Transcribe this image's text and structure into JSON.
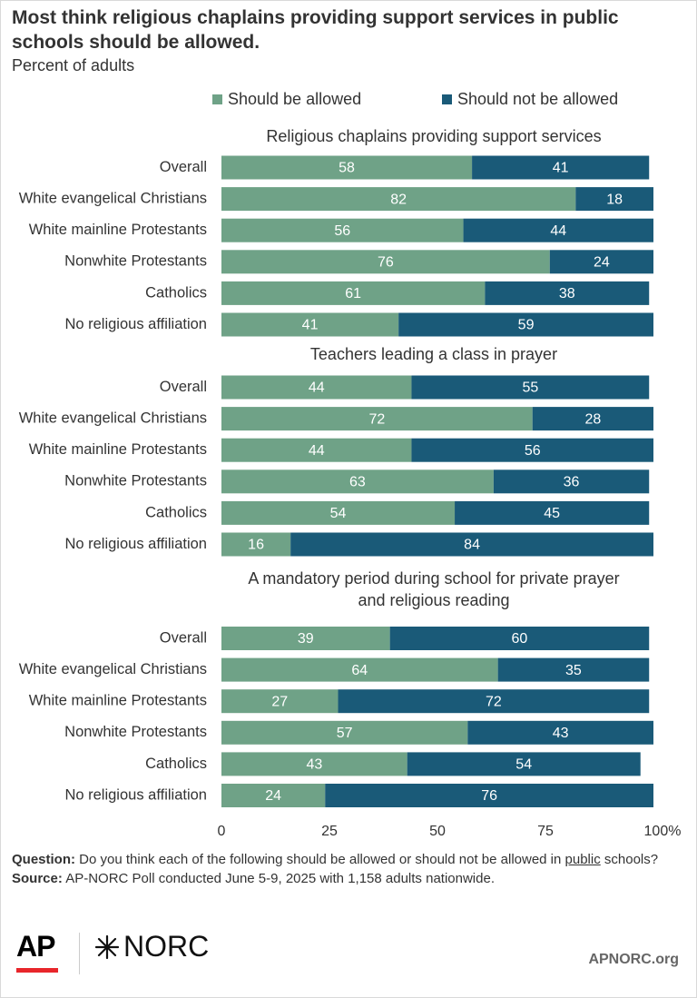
{
  "header": {
    "title": "Most think religious chaplains providing support services in public schools should be allowed.",
    "subtitle": "Percent of adults"
  },
  "colors": {
    "allowed": "#6fa287",
    "not_allowed": "#1a5a78",
    "label_light": "#ffffff"
  },
  "chart_data": {
    "type": "bar",
    "orientation": "horizontal-stacked",
    "xlim": [
      0,
      100
    ],
    "xticks": [
      "0",
      "25",
      "50",
      "75",
      "100%"
    ],
    "legend": {
      "placement": "top",
      "entries": [
        "Should be allowed",
        "Should not be allowed"
      ]
    },
    "series": [
      {
        "name": "Should be allowed"
      },
      {
        "name": "Should not be allowed"
      }
    ],
    "panels": [
      {
        "title": "Religious chaplains providing support services",
        "categories": [
          "Overall",
          "White evangelical Christians",
          "White mainline Protestants",
          "Nonwhite Protestants",
          "Catholics",
          "No religious affiliation"
        ],
        "allowed": [
          58,
          82,
          56,
          76,
          61,
          41
        ],
        "not_allowed": [
          41,
          18,
          44,
          24,
          38,
          59
        ]
      },
      {
        "title": "Teachers leading a class in prayer",
        "categories": [
          "Overall",
          "White evangelical Christians",
          "White mainline Protestants",
          "Nonwhite Protestants",
          "Catholics",
          "No religious affiliation"
        ],
        "allowed": [
          44,
          72,
          44,
          63,
          54,
          16
        ],
        "not_allowed": [
          55,
          28,
          56,
          36,
          45,
          84
        ]
      },
      {
        "title": "A mandatory period during school for private prayer and religious reading",
        "categories": [
          "Overall",
          "White evangelical Christians",
          "White mainline Protestants",
          "Nonwhite Protestants",
          "Catholics",
          "No religious affiliation"
        ],
        "allowed": [
          39,
          64,
          27,
          57,
          43,
          24
        ],
        "not_allowed": [
          60,
          35,
          72,
          43,
          54,
          76
        ]
      }
    ]
  },
  "footnote": {
    "question_label": "Question:",
    "question_text_a": "Do you think each of the following should be allowed or should not be allowed in ",
    "question_text_u": "public",
    "question_text_b": " schools?",
    "source_label": "Source:",
    "source_text": "AP-NORC Poll conducted June 5-9, 2025 with 1,158 adults nationwide."
  },
  "branding": {
    "ap_logo": "AP",
    "norc_logo": "NORC",
    "norc_icon": "norc-star-icon",
    "url": "APNORC.org"
  }
}
